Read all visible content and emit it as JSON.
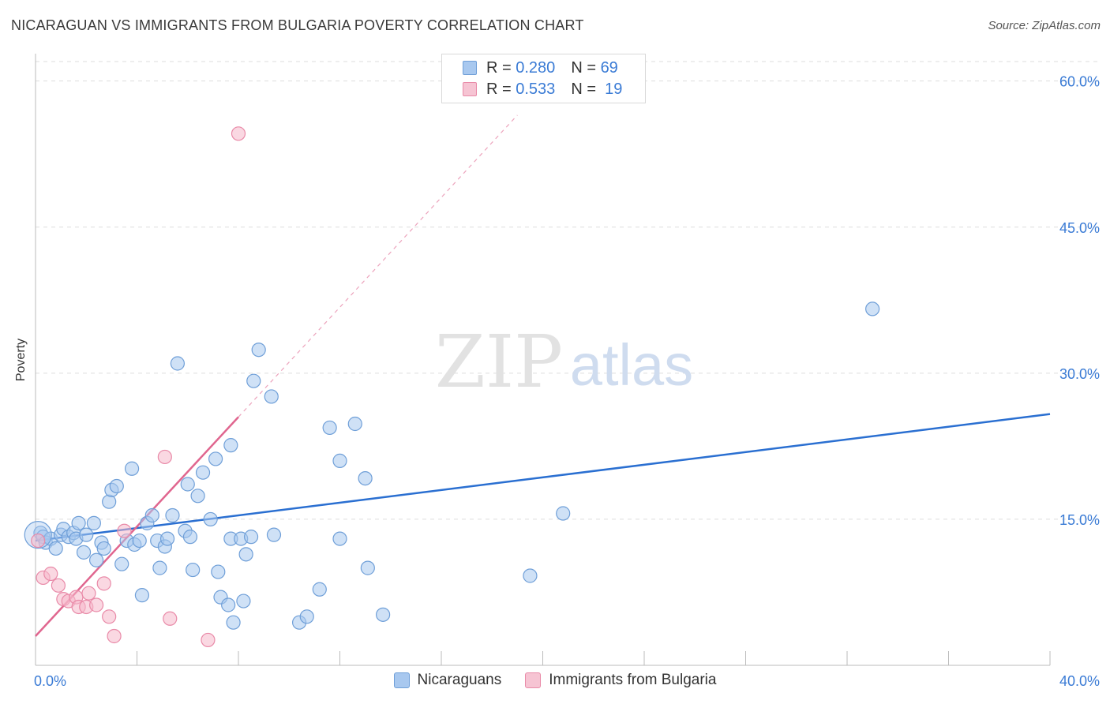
{
  "title": "NICARAGUAN VS IMMIGRANTS FROM BULGARIA POVERTY CORRELATION CHART",
  "source": "Source: ZipAtlas.com",
  "watermark": {
    "zip": "ZIP",
    "atlas": "atlas"
  },
  "legend": [
    {
      "r_label": "R =",
      "r_value": "0.280",
      "n_label": "N =",
      "n_value": "69"
    },
    {
      "r_label": "R =",
      "r_value": "0.533",
      "n_label": "N =",
      "n_value": "19"
    }
  ],
  "colors": {
    "blue_fill": "#a8c8ef",
    "blue_stroke": "#6f9fd8",
    "blue_line": "#2a6fd1",
    "pink_fill": "#f6b8cb",
    "pink_stroke": "#e98aa8",
    "pink_line": "#e0668f",
    "tick_text": "#3a7bd5",
    "grid": "#dddddd"
  },
  "chart_data": {
    "type": "scatter",
    "title": "NICARAGUAN VS IMMIGRANTS FROM BULGARIA POVERTY CORRELATION CHART",
    "xlabel": "",
    "ylabel": "Poverty",
    "xlim": [
      0,
      40
    ],
    "ylim": [
      0,
      62
    ],
    "x_tick_labels": [
      "0.0%",
      "40.0%"
    ],
    "y_ticks": [
      15,
      30,
      45,
      60
    ],
    "y_tick_labels": [
      "15.0%",
      "30.0%",
      "45.0%",
      "60.0%"
    ],
    "series": [
      {
        "name": "Nicaraguans",
        "r": 0.28,
        "n": 69,
        "trend": {
          "x": [
            0,
            40
          ],
          "y": [
            12.8,
            25.8
          ]
        },
        "points": [
          [
            0.2,
            13.6
          ],
          [
            0.3,
            13.2
          ],
          [
            0.4,
            12.6
          ],
          [
            0.6,
            13.0
          ],
          [
            0.8,
            12.0
          ],
          [
            1.0,
            13.4
          ],
          [
            1.1,
            14.0
          ],
          [
            1.3,
            13.2
          ],
          [
            1.5,
            13.6
          ],
          [
            1.6,
            13.0
          ],
          [
            1.7,
            14.6
          ],
          [
            1.9,
            11.6
          ],
          [
            2.0,
            13.4
          ],
          [
            2.3,
            14.6
          ],
          [
            2.4,
            10.8
          ],
          [
            2.6,
            12.6
          ],
          [
            2.7,
            12.0
          ],
          [
            2.9,
            16.8
          ],
          [
            3.0,
            18.0
          ],
          [
            3.2,
            18.4
          ],
          [
            3.4,
            10.4
          ],
          [
            3.6,
            12.8
          ],
          [
            3.8,
            20.2
          ],
          [
            3.9,
            12.4
          ],
          [
            4.1,
            12.8
          ],
          [
            4.2,
            7.2
          ],
          [
            4.4,
            14.6
          ],
          [
            4.6,
            15.4
          ],
          [
            4.8,
            12.8
          ],
          [
            4.9,
            10.0
          ],
          [
            5.1,
            12.2
          ],
          [
            5.2,
            13.0
          ],
          [
            5.4,
            15.4
          ],
          [
            5.6,
            31.0
          ],
          [
            5.9,
            13.8
          ],
          [
            6.0,
            18.6
          ],
          [
            6.1,
            13.2
          ],
          [
            6.2,
            9.8
          ],
          [
            6.4,
            17.4
          ],
          [
            6.6,
            19.8
          ],
          [
            6.9,
            15.0
          ],
          [
            7.1,
            21.2
          ],
          [
            7.2,
            9.6
          ],
          [
            7.3,
            7.0
          ],
          [
            7.6,
            6.2
          ],
          [
            7.7,
            22.6
          ],
          [
            7.7,
            13.0
          ],
          [
            7.8,
            4.4
          ],
          [
            8.1,
            13.0
          ],
          [
            8.2,
            6.6
          ],
          [
            8.3,
            11.4
          ],
          [
            8.5,
            13.2
          ],
          [
            8.6,
            29.2
          ],
          [
            8.8,
            32.4
          ],
          [
            9.3,
            27.6
          ],
          [
            9.4,
            13.4
          ],
          [
            10.4,
            4.4
          ],
          [
            10.7,
            5.0
          ],
          [
            11.2,
            7.8
          ],
          [
            11.6,
            24.4
          ],
          [
            12.0,
            21.0
          ],
          [
            12.0,
            13.0
          ],
          [
            12.6,
            24.8
          ],
          [
            13.0,
            19.2
          ],
          [
            13.1,
            10.0
          ],
          [
            13.7,
            5.2
          ],
          [
            19.5,
            9.2
          ],
          [
            20.8,
            15.6
          ],
          [
            33.0,
            36.6
          ]
        ]
      },
      {
        "name": "Immigrants from Bulgaria",
        "r": 0.533,
        "n": 19,
        "trend": {
          "x": [
            0,
            8
          ],
          "y": [
            3.0,
            25.5
          ]
        },
        "trend_extended_to": {
          "x": 19,
          "y": 56.5
        },
        "points": [
          [
            0.1,
            12.8
          ],
          [
            0.3,
            9.0
          ],
          [
            0.6,
            9.4
          ],
          [
            0.9,
            8.2
          ],
          [
            1.1,
            6.8
          ],
          [
            1.3,
            6.6
          ],
          [
            1.6,
            7.0
          ],
          [
            1.7,
            6.0
          ],
          [
            2.0,
            6.0
          ],
          [
            2.1,
            7.4
          ],
          [
            2.4,
            6.2
          ],
          [
            2.7,
            8.4
          ],
          [
            2.9,
            5.0
          ],
          [
            3.1,
            3.0
          ],
          [
            3.5,
            13.8
          ],
          [
            5.1,
            21.4
          ],
          [
            5.3,
            4.8
          ],
          [
            6.8,
            2.6
          ],
          [
            8.0,
            54.6
          ]
        ]
      }
    ]
  },
  "bottom_legend": [
    "Nicaraguans",
    "Immigrants from Bulgaria"
  ]
}
